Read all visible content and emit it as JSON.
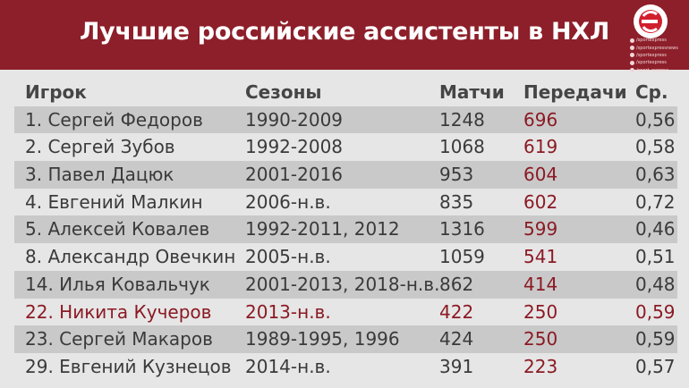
{
  "header": {
    "title": "Лучшие российские ассистенты в НХЛ",
    "socials": [
      "/sportexpress",
      "/sportexpressnews",
      "/sportexpress",
      "/sportexpress",
      "/sport_express"
    ],
    "logo_icon": "sport-express-logo"
  },
  "colors": {
    "header_bg": "#8d1f2a",
    "page_bg": "#e6e6e6",
    "alt_row_bg": "#c9c9c9",
    "accent": "#8b1a24"
  },
  "table": {
    "columns": [
      "Игрок",
      "Сезоны",
      "Матчи",
      "Передачи",
      "Ср."
    ],
    "rows": [
      {
        "player": "1. Сергей Федоров",
        "seasons": "1990-2009",
        "games": "1248",
        "assists": "696",
        "ratio": "0,56",
        "highlight": false
      },
      {
        "player": "2. Сергей Зубов",
        "seasons": "1992-2008",
        "games": "1068",
        "assists": "619",
        "ratio": "0,58",
        "highlight": false
      },
      {
        "player": "3. Павел Дацюк",
        "seasons": "2001-2016",
        "games": "953",
        "assists": "604",
        "ratio": "0,63",
        "highlight": false
      },
      {
        "player": "4. Евгений Малкин",
        "seasons": "2006-н.в.",
        "games": "835",
        "assists": "602",
        "ratio": "0,72",
        "highlight": false
      },
      {
        "player": "5. Алексей Ковалев",
        "seasons": "1992-2011, 2012",
        "games": "1316",
        "assists": "599",
        "ratio": "0,46",
        "highlight": false
      },
      {
        "player": "8. Александр Овечкин",
        "seasons": "2005-н.в.",
        "games": "1059",
        "assists": "541",
        "ratio": "0,51",
        "highlight": false
      },
      {
        "player": "14. Илья Ковальчук",
        "seasons": "2001-2013, 2018-н.в.",
        "games": "862",
        "assists": "414",
        "ratio": "0,48",
        "highlight": false
      },
      {
        "player": "22. Никита Кучеров",
        "seasons": "2013-н.в.",
        "games": "422",
        "assists": "250",
        "ratio": "0,59",
        "highlight": true
      },
      {
        "player": "23. Сергей Макаров",
        "seasons": "1989-1995, 1996",
        "games": "424",
        "assists": "250",
        "ratio": "0,59",
        "highlight": false
      },
      {
        "player": "29. Евгений Кузнецов",
        "seasons": "2014-н.в.",
        "games": "391",
        "assists": "223",
        "ratio": "0,57",
        "highlight": false
      }
    ]
  }
}
